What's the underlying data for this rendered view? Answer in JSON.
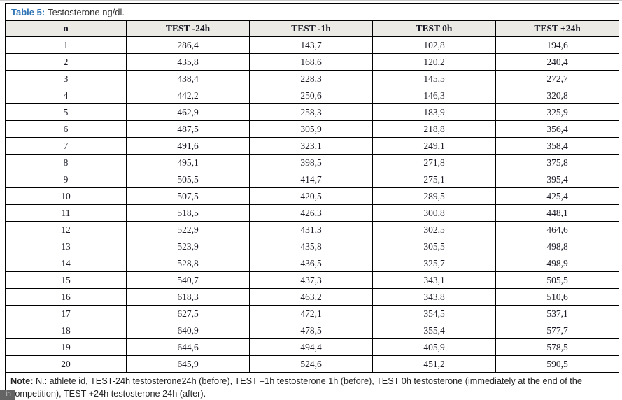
{
  "title": {
    "label": "Table 5:",
    "text": "Testosterone ng/dl."
  },
  "table": {
    "headers": [
      "n",
      "TEST -24h",
      "TEST -1h",
      "TEST 0h",
      "TEST +24h"
    ],
    "rows": [
      [
        "1",
        "286,4",
        "143,7",
        "102,8",
        "194,6"
      ],
      [
        "2",
        "435,8",
        "168,6",
        "120,2",
        "240,4"
      ],
      [
        "3",
        "438,4",
        "228,3",
        "145,5",
        "272,7"
      ],
      [
        "4",
        "442,2",
        "250,6",
        "146,3",
        "320,8"
      ],
      [
        "5",
        "462,9",
        "258,3",
        "183,9",
        "325,9"
      ],
      [
        "6",
        "487,5",
        "305,9",
        "218,8",
        "356,4"
      ],
      [
        "7",
        "491,6",
        "323,1",
        "249,1",
        "358,4"
      ],
      [
        "8",
        "495,1",
        "398,5",
        "271,8",
        "375,8"
      ],
      [
        "9",
        "505,5",
        "414,7",
        "275,1",
        "395,4"
      ],
      [
        "10",
        "507,5",
        "420,5",
        "289,5",
        "425,4"
      ],
      [
        "11",
        "518,5",
        "426,3",
        "300,8",
        "448,1"
      ],
      [
        "12",
        "522,9",
        "431,3",
        "302,5",
        "464,6"
      ],
      [
        "13",
        "523,9",
        "435,8",
        "305,5",
        "498,8"
      ],
      [
        "14",
        "528,8",
        "436,5",
        "325,7",
        "498,9"
      ],
      [
        "15",
        "540,7",
        "437,3",
        "343,1",
        "505,5"
      ],
      [
        "16",
        "618,3",
        "463,2",
        "343,8",
        "510,6"
      ],
      [
        "17",
        "627,5",
        "472,1",
        "354,5",
        "537,1"
      ],
      [
        "18",
        "640,9",
        "478,5",
        "355,4",
        "577,7"
      ],
      [
        "19",
        "644,6",
        "494,4",
        "405,9",
        "578,5"
      ],
      [
        "20",
        "645,9",
        "524,6",
        "451,2",
        "590,5"
      ]
    ]
  },
  "note": {
    "label": "Note:",
    "text": " N.: athlete id, TEST-24h testosterone24h (before), TEST –1h testosterone 1h (before), TEST 0h testosterone (immediately at the end of the competition), TEST +24h testosterone 24h (after)."
  },
  "badge": {
    "text": "in"
  },
  "colors": {
    "accent_blue": "#2e74b5",
    "header_bg": "#eceae5",
    "border": "#000000"
  }
}
